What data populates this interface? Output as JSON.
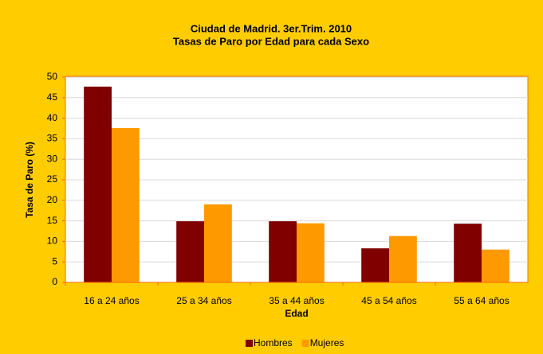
{
  "chart_data": {
    "type": "bar",
    "title": "Ciudad de Madrid. 3er.Trim. 2010",
    "subtitle": "Tasas de Paro por Edad para cada Sexo",
    "xlabel": "Edad",
    "ylabel": "Tasa de Paro (%)",
    "categories": [
      "16 a 24 años",
      "25 a 34 años",
      "35 a 44 años",
      "45 a 54 años",
      "55 a 64 años"
    ],
    "series": [
      {
        "name": "Hombres",
        "color": "#800000",
        "values": [
          47.7,
          14.9,
          14.9,
          8.3,
          14.3
        ]
      },
      {
        "name": "Mujeres",
        "color": "#ff9900",
        "values": [
          37.6,
          19.0,
          14.4,
          11.3,
          8.0
        ]
      }
    ],
    "ylim": [
      0,
      50
    ],
    "yticks": [
      0,
      5,
      10,
      15,
      20,
      25,
      30,
      35,
      40,
      45,
      50
    ],
    "grid": true,
    "legend": "bottom"
  }
}
